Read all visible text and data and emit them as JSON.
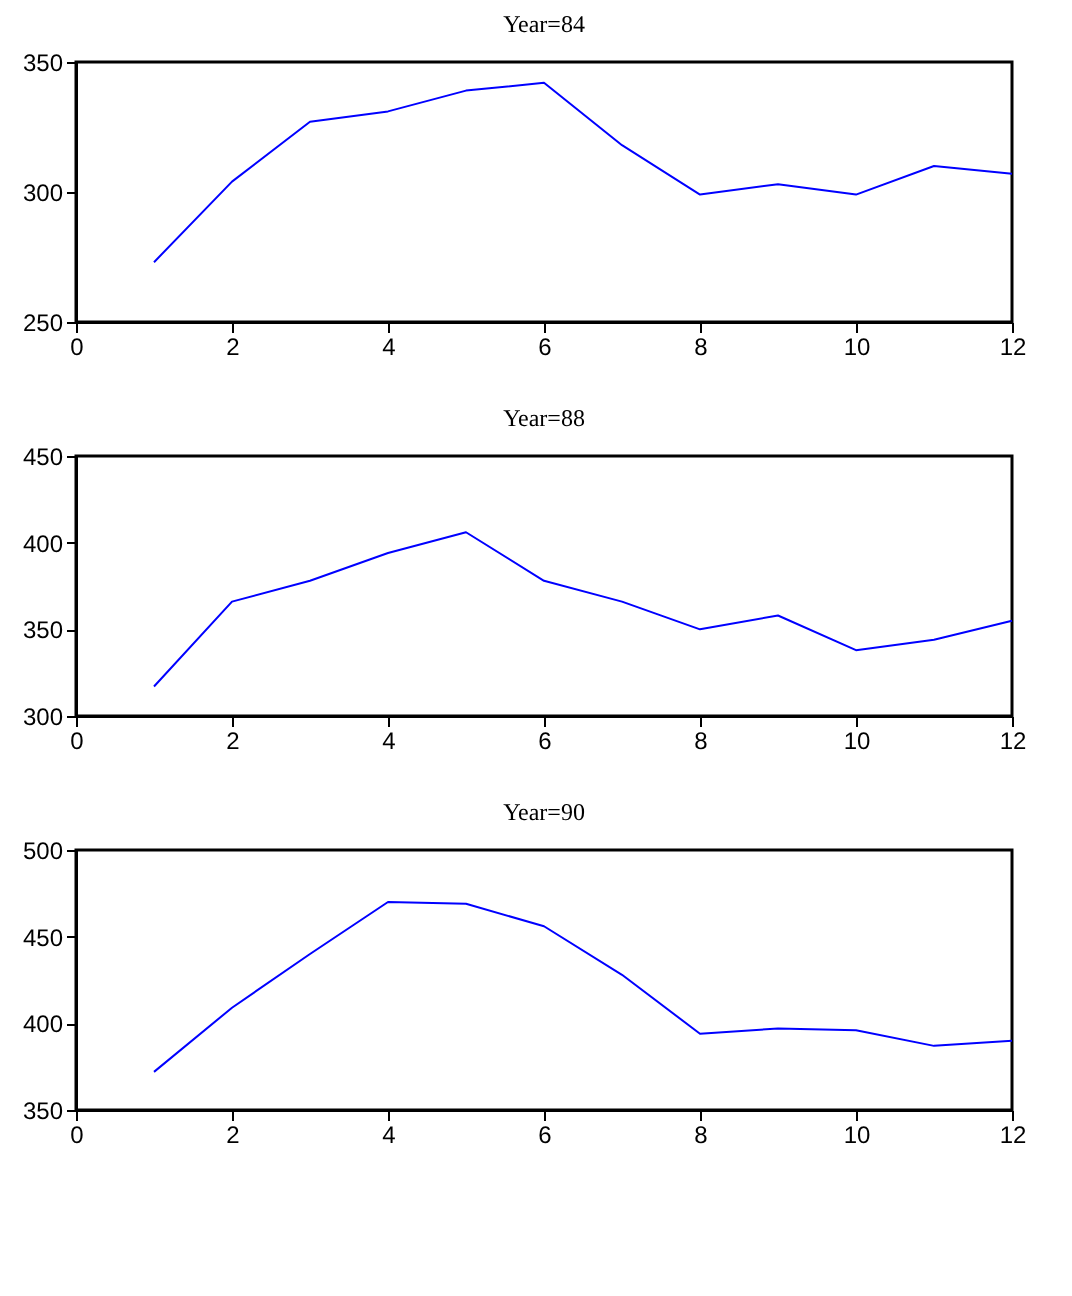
{
  "chart_data": [
    {
      "type": "line",
      "title": "Year=84",
      "x": [
        1,
        2,
        3,
        4,
        5,
        6,
        7,
        8,
        9,
        10,
        11,
        12
      ],
      "series": [
        {
          "color": "#0000ff",
          "values": [
            273,
            304,
            327,
            331,
            339,
            342,
            318,
            299,
            303,
            299,
            310,
            307
          ]
        }
      ],
      "xlim": [
        0,
        12
      ],
      "xticks": [
        0,
        2,
        4,
        6,
        8,
        10,
        12
      ],
      "ylim": [
        250,
        350
      ],
      "yticks": [
        250,
        300,
        350
      ]
    },
    {
      "type": "line",
      "title": "Year=88",
      "x": [
        1,
        2,
        3,
        4,
        5,
        6,
        7,
        8,
        9,
        10,
        11,
        12
      ],
      "series": [
        {
          "color": "#0000ff",
          "values": [
            317,
            366,
            378,
            394,
            406,
            378,
            366,
            350,
            358,
            338,
            344,
            355
          ]
        }
      ],
      "xlim": [
        0,
        12
      ],
      "xticks": [
        0,
        2,
        4,
        6,
        8,
        10,
        12
      ],
      "ylim": [
        300,
        450
      ],
      "yticks": [
        300,
        350,
        400,
        450
      ]
    },
    {
      "type": "line",
      "title": "Year=90",
      "x": [
        1,
        2,
        3,
        4,
        5,
        6,
        7,
        8,
        9,
        10,
        11,
        12
      ],
      "series": [
        {
          "color": "#0000ff",
          "values": [
            372,
            409,
            440,
            470,
            469,
            456,
            428,
            394,
            397,
            396,
            387,
            390
          ]
        }
      ],
      "xlim": [
        0,
        12
      ],
      "xticks": [
        0,
        2,
        4,
        6,
        8,
        10,
        12
      ],
      "ylim": [
        350,
        500
      ],
      "yticks": [
        350,
        400,
        450,
        500
      ]
    }
  ]
}
